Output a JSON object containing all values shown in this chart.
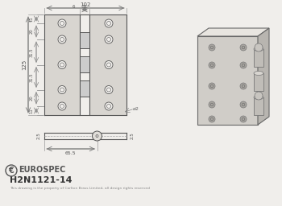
{
  "bg_color": "#f0eeeb",
  "line_color": "#888888",
  "dark_line": "#555555",
  "title_text": "H2N1121-14",
  "brand": "EUROSPEC",
  "copyright": "This drawing is the property of Carlton Brass Limited, all design rights reserved",
  "dim_102": "102",
  "dim_32": "32",
  "dim_6": "6",
  "dim_11": "11",
  "dim_20": "20",
  "dim_31_5": "31.5",
  "dim_125": "125",
  "dim_65_5": "65.5",
  "dim_2_5": "2.5",
  "dim_phi2": "ø2"
}
